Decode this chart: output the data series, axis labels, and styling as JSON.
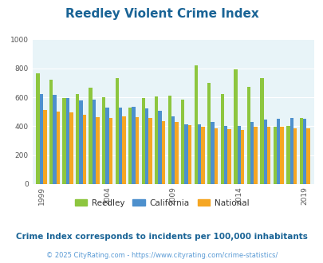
{
  "title": "Reedley Violent Crime Index",
  "subtitle": "Crime Index corresponds to incidents per 100,000 inhabitants",
  "footer": "© 2025 CityRating.com - https://www.cityrating.com/crime-statistics/",
  "years": [
    1999,
    2000,
    2001,
    2002,
    2003,
    2004,
    2005,
    2006,
    2007,
    2008,
    2009,
    2010,
    2011,
    2012,
    2013,
    2014,
    2015,
    2016,
    2017,
    2018,
    2019
  ],
  "reedley": [
    765,
    720,
    595,
    625,
    665,
    600,
    735,
    530,
    595,
    605,
    610,
    585,
    820,
    700,
    625,
    795,
    670,
    735,
    395,
    400,
    455
  ],
  "california": [
    620,
    615,
    595,
    580,
    585,
    530,
    530,
    535,
    525,
    505,
    470,
    415,
    415,
    430,
    400,
    400,
    430,
    445,
    450,
    455,
    450
  ],
  "national": [
    510,
    500,
    495,
    480,
    465,
    460,
    470,
    465,
    455,
    435,
    430,
    405,
    395,
    385,
    380,
    375,
    395,
    395,
    395,
    385,
    385
  ],
  "color_reedley": "#8dc63f",
  "color_california": "#4d90cd",
  "color_national": "#f5a623",
  "color_title": "#1a6496",
  "color_subtitle": "#1a6496",
  "color_footer": "#5b9bd5",
  "color_bg_plot": "#e8f4f8",
  "color_bg_fig": "#ffffff",
  "ylim": [
    0,
    1000
  ],
  "yticks": [
    0,
    200,
    400,
    600,
    800,
    1000
  ],
  "xtick_years": [
    1999,
    2004,
    2009,
    2014,
    2019
  ],
  "bar_width": 0.27,
  "title_fontsize": 11,
  "subtitle_fontsize": 7.5,
  "footer_fontsize": 6,
  "tick_fontsize": 6.5,
  "legend_fontsize": 7.5
}
